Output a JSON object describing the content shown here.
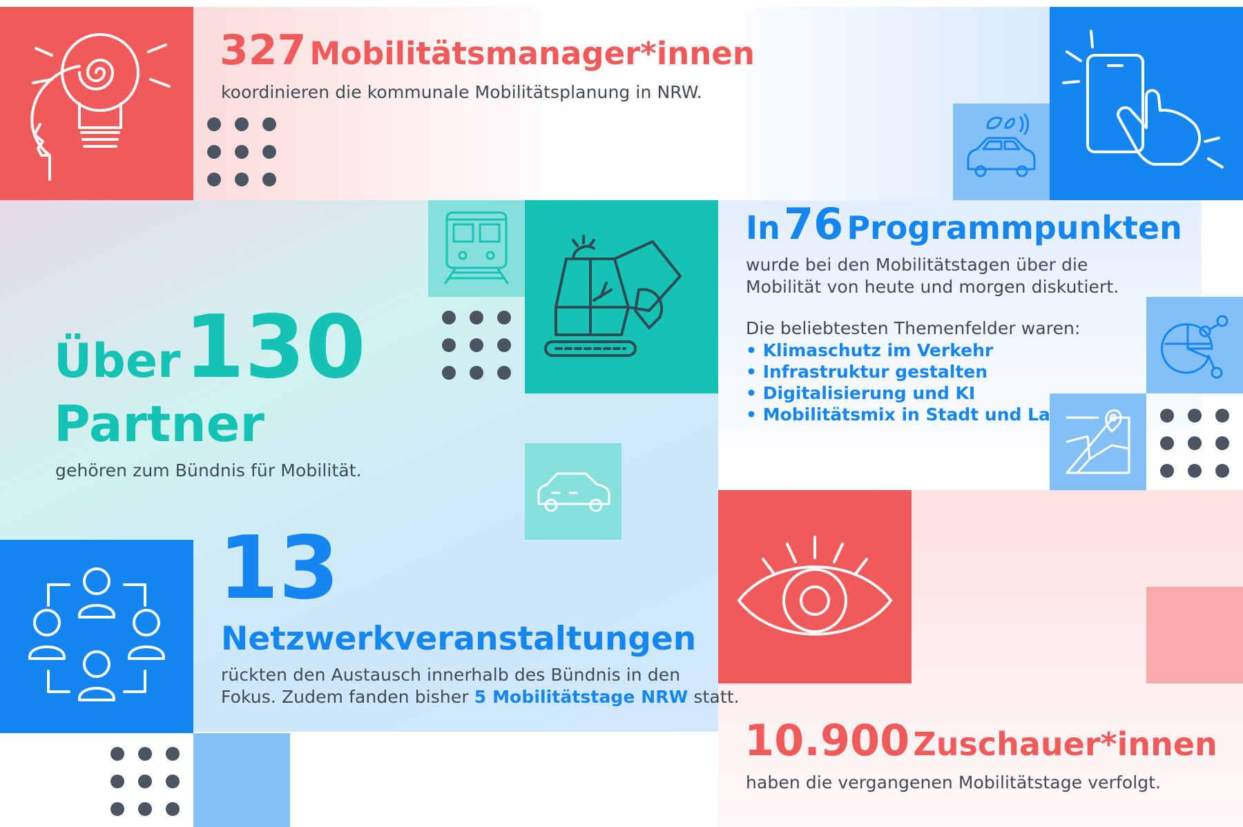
{
  "colors": {
    "red": "#f05a5a",
    "blue": "#1585f0",
    "teal": "#14c3b4",
    "light_teal": "#85e0dc",
    "light_blue": "#82c0f5",
    "light_red": "#f9aaaa",
    "text": "#3f4a55"
  },
  "icons": {
    "head_bulb": "head-lightbulb-icon",
    "phone_touch": "smartphone-touch-icon",
    "eco_car": "eco-car-icon",
    "train": "train-icon",
    "excavator": "excavator-icon",
    "car": "car-icon",
    "network_people": "network-people-icon",
    "pie_chart": "pie-chart-network-icon",
    "map_pin": "map-pin-icon",
    "eye": "eye-icon"
  },
  "managers": {
    "number": "327",
    "label": "Mobilitätsmanager*innen",
    "text": "koordinieren die kommunale Mobilitätsplanung in NRW."
  },
  "program": {
    "prefix": "In",
    "number": "76",
    "label": "Programmpunkten",
    "text_line1": "wurde bei den Mobilitätstagen über die",
    "text_line2": "Mobilität von heute und morgen diskutiert.",
    "topics_intro": "Die beliebtesten Themenfelder waren:",
    "topics": [
      "Klimaschutz im Verkehr",
      "Infrastruktur gestalten",
      "Digitalisierung und KI",
      "Mobilitätsmix in Stadt und Land"
    ]
  },
  "partners": {
    "prefix": "Über",
    "number": "130",
    "label": "Partner",
    "text": "gehören zum Bündnis für Mobilität."
  },
  "events": {
    "number": "13",
    "label": "Netzwerkveranstaltungen",
    "text_line1": "rückten den Austausch innerhalb des Bündnis in den",
    "text_line2_pre": "Fokus. Zudem fanden bisher",
    "text_line2_highlight": "5 Mobilitätstage NRW",
    "text_line2_post": "statt."
  },
  "viewers": {
    "number": "10.900",
    "label": "Zuschauer*innen",
    "text": "haben die vergangenen Mobilitätstage verfolgt."
  }
}
